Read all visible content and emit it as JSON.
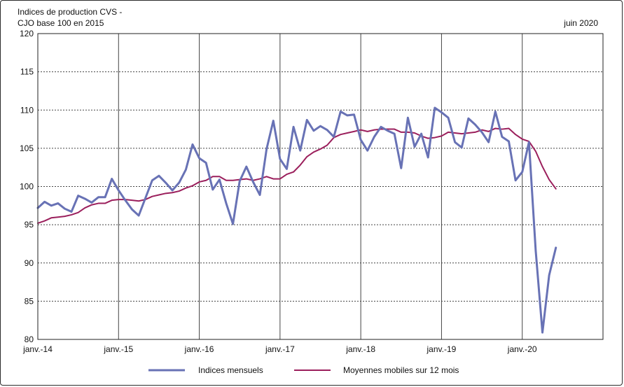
{
  "header": {
    "title_line1": "Indices de production CVS -",
    "title_line2": "CJO base 100 en 2015",
    "date": "juin 2020"
  },
  "colors": {
    "monthly": "#6872b5",
    "moving_avg": "#9b1f5c",
    "grid": "#444444",
    "axis": "#222222"
  },
  "chart_data": {
    "type": "line",
    "title": "Indices de production CVS - CJO base 100 en 2015",
    "xlabel": "",
    "ylabel": "",
    "ylim": [
      80,
      120
    ],
    "yticks": [
      80,
      85,
      90,
      95,
      100,
      105,
      110,
      115,
      120
    ],
    "xticks": [
      "janv.-14",
      "janv.-15",
      "janv.-16",
      "janv.-17",
      "janv.-18",
      "janv.-19",
      "janv.-20"
    ],
    "x_start": "2014-01",
    "n_months_axis": 84,
    "grid": "dashed horizontal, solid vertical",
    "legend": "bottom",
    "series": [
      {
        "name": "Indices mensuels",
        "values": [
          97.2,
          98.0,
          97.5,
          97.8,
          97.1,
          96.7,
          98.8,
          98.4,
          97.9,
          98.6,
          98.6,
          101.0,
          99.5,
          98.2,
          97.0,
          96.2,
          98.5,
          100.8,
          101.4,
          100.5,
          99.5,
          100.5,
          102.2,
          105.5,
          103.7,
          103.1,
          99.6,
          100.9,
          97.8,
          95.1,
          100.7,
          102.6,
          100.6,
          98.9,
          104.9,
          108.6,
          103.6,
          102.3,
          107.8,
          104.7,
          108.7,
          107.3,
          107.9,
          107.4,
          106.5,
          109.8,
          109.3,
          109.4,
          106.1,
          104.7,
          106.5,
          107.8,
          107.3,
          106.9,
          102.4,
          109.0,
          105.2,
          106.9,
          103.8,
          110.3,
          109.7,
          109.0,
          105.8,
          105.1,
          108.9,
          108.1,
          107.1,
          105.8,
          109.8,
          106.5,
          105.9,
          100.8,
          101.9,
          105.8,
          91.6,
          80.9,
          88.4,
          92.0
        ]
      },
      {
        "name": "Moyennes mobiles sur 12 mois",
        "values": [
          95.2,
          95.5,
          95.9,
          96.0,
          96.1,
          96.3,
          96.6,
          97.2,
          97.6,
          97.8,
          97.8,
          98.2,
          98.3,
          98.3,
          98.2,
          98.1,
          98.3,
          98.7,
          98.9,
          99.1,
          99.2,
          99.4,
          99.8,
          100.1,
          100.6,
          100.8,
          101.3,
          101.3,
          100.8,
          100.8,
          100.9,
          101.0,
          100.8,
          101.0,
          101.3,
          101.0,
          101.0,
          101.6,
          101.9,
          102.8,
          103.9,
          104.5,
          104.9,
          105.4,
          106.4,
          106.8,
          107.0,
          107.2,
          107.4,
          107.2,
          107.4,
          107.5,
          107.5,
          107.5,
          107.1,
          107.1,
          107.0,
          106.6,
          106.3,
          106.4,
          106.6,
          107.1,
          107.0,
          106.9,
          107.0,
          107.1,
          107.4,
          107.2,
          107.6,
          107.5,
          107.6,
          106.8,
          106.2,
          105.9,
          104.6,
          102.6,
          100.9,
          99.7
        ]
      }
    ]
  }
}
